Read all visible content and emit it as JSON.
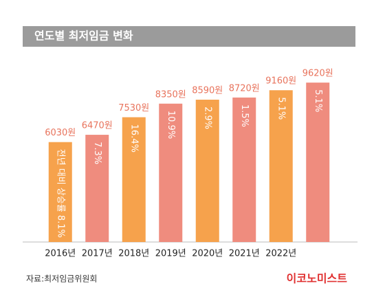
{
  "chart_data": {
    "type": "bar",
    "title": "연도별 최저임금 변화",
    "categories": [
      "2016년",
      "2017년",
      "2018년",
      "2019년",
      "2020년",
      "2021년",
      "2022년",
      null
    ],
    "values": [
      6030,
      6470,
      7530,
      8350,
      8590,
      8720,
      9160,
      9620
    ],
    "value_labels": [
      "6030원",
      "6470원",
      "7530원",
      "8350원",
      "8590원",
      "8720원",
      "9160원",
      "9620원"
    ],
    "bar_notes": [
      "전년 대비 상승률 8.1%",
      "7.3%",
      "16.4%",
      "10.9%",
      "2.9%",
      "1.5%",
      "5.1%",
      "5.1%"
    ],
    "colors": [
      "#f6a24c",
      "#ef8c7e",
      "#f6a24c",
      "#ef8c7e",
      "#f6a24c",
      "#ef8c7e",
      "#f6a24c",
      "#ef8c7e"
    ],
    "ylim": [
      0,
      10000
    ],
    "source": "자료:최저임금위원회",
    "logo": "이코노미스트"
  }
}
